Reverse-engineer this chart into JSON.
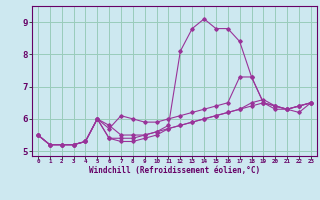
{
  "xlabel": "Windchill (Refroidissement éolien,°C)",
  "bg_color": "#cde8f0",
  "line_color": "#993399",
  "grid_color": "#99ccbb",
  "x_hours": [
    0,
    1,
    2,
    3,
    4,
    5,
    6,
    7,
    8,
    9,
    10,
    11,
    12,
    13,
    14,
    15,
    16,
    17,
    18,
    19,
    20,
    21,
    22,
    23
  ],
  "series": [
    [
      5.5,
      5.2,
      5.2,
      5.2,
      5.3,
      6.0,
      5.8,
      5.5,
      5.5,
      5.5,
      5.6,
      5.8,
      8.1,
      8.8,
      9.1,
      8.8,
      8.8,
      8.4,
      7.3,
      6.5,
      6.3,
      6.3,
      6.4,
      6.5
    ],
    [
      5.5,
      5.2,
      5.2,
      5.2,
      5.3,
      6.0,
      5.4,
      5.3,
      5.3,
      5.4,
      5.5,
      5.7,
      5.8,
      5.9,
      6.0,
      6.1,
      6.2,
      6.3,
      6.4,
      6.5,
      6.4,
      6.3,
      6.4,
      6.5
    ],
    [
      5.5,
      5.2,
      5.2,
      5.2,
      5.3,
      6.0,
      5.4,
      5.4,
      5.4,
      5.5,
      5.6,
      5.7,
      5.8,
      5.9,
      6.0,
      6.1,
      6.2,
      6.3,
      6.5,
      6.6,
      6.4,
      6.3,
      6.2,
      6.5
    ],
    [
      5.5,
      5.2,
      5.2,
      5.2,
      5.3,
      6.0,
      5.7,
      6.1,
      6.0,
      5.9,
      5.9,
      6.0,
      6.1,
      6.2,
      6.3,
      6.4,
      6.5,
      7.3,
      7.3,
      6.5,
      6.4,
      6.3,
      6.4,
      6.5
    ]
  ],
  "ylim": [
    4.85,
    9.5
  ],
  "yticks": [
    5,
    6,
    7,
    8,
    9
  ],
  "xlim": [
    -0.5,
    23.5
  ],
  "xticks": [
    0,
    1,
    2,
    3,
    4,
    5,
    6,
    7,
    8,
    9,
    10,
    11,
    12,
    13,
    14,
    15,
    16,
    17,
    18,
    19,
    20,
    21,
    22,
    23
  ],
  "xlabel_fontsize": 5.5,
  "ytick_fontsize": 6.5,
  "xtick_fontsize": 4.2
}
